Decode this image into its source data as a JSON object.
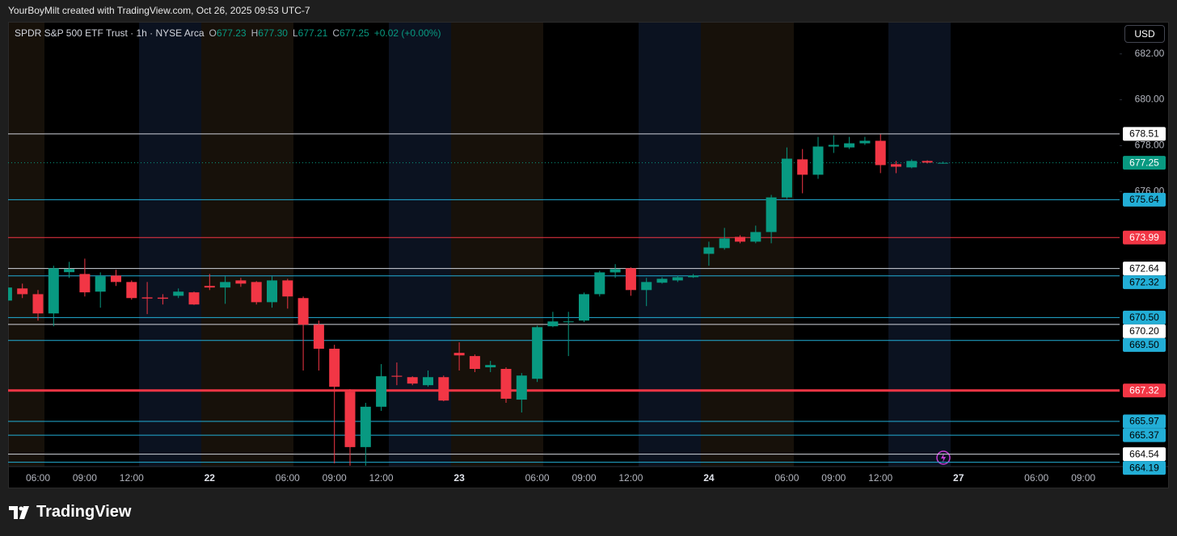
{
  "caption": "YourBoyMilt created with TradingView.com, Oct 26, 2025 09:53 UTC-7",
  "brand": "TradingView",
  "chart_data": {
    "type": "candlestick",
    "title": "SPDR S&P 500 ETF Trust · 1h · NYSE Arca",
    "legend": {
      "items": [
        {
          "key": "O",
          "value": "677.23"
        },
        {
          "key": "H",
          "value": "677.30"
        },
        {
          "key": "L",
          "value": "677.21"
        },
        {
          "key": "C",
          "value": "677.25"
        }
      ],
      "change": "+0.02 (+0.00%)"
    },
    "currency": "USD",
    "up_color": "#089981",
    "down_color": "#f23645",
    "categories": [
      null,
      null,
      "06:00",
      null,
      null,
      "09:00",
      null,
      null,
      "12:00",
      null,
      null,
      null,
      null,
      "22",
      null,
      null,
      null,
      null,
      "06:00",
      null,
      null,
      "09:00",
      null,
      null,
      "12:00",
      null,
      null,
      null,
      null,
      "23",
      null,
      null,
      null,
      null,
      "06:00",
      null,
      null,
      "09:00",
      null,
      null,
      "12:00",
      null,
      null,
      null,
      null,
      "24",
      null,
      null,
      null,
      null,
      "06:00",
      null,
      null,
      "09:00",
      null,
      null,
      "12:00",
      null,
      null,
      null,
      null,
      "27",
      null,
      null,
      null,
      null,
      "06:00",
      null,
      null,
      "09:00",
      null,
      null
    ],
    "open": [
      671.24,
      671.77,
      671.52,
      670.68,
      672.48,
      672.4,
      671.63,
      672.33,
      672.05,
      671.38,
      671.37,
      671.45,
      671.6,
      671.88,
      671.81,
      672.12,
      672.05,
      671.17,
      672.12,
      671.35,
      670.19,
      669.14,
      667.27,
      664.85,
      666.61,
      667.96,
      667.9,
      667.55,
      667.9,
      668.96,
      668.82,
      668.33,
      668.26,
      666.92,
      667.83,
      670.12,
      670.3,
      670.37,
      671.52,
      672.47,
      672.65,
      671.7,
      672.02,
      672.12,
      672.26,
      673.28,
      673.53,
      674.02,
      673.81,
      674.23,
      675.74,
      677.4,
      676.73,
      677.96,
      677.92,
      678.1,
      678.21,
      677.19,
      677.05,
      677.33,
      677.23,
      null,
      null,
      null,
      null,
      null,
      null,
      null,
      null,
      null,
      null,
      null
    ],
    "high": [
      672.0,
      671.98,
      671.7,
      672.76,
      672.93,
      673.07,
      672.47,
      672.58,
      672.12,
      672.05,
      671.52,
      671.77,
      671.63,
      672.4,
      672.3,
      672.23,
      672.09,
      672.3,
      672.19,
      671.42,
      670.37,
      669.31,
      667.38,
      666.78,
      668.47,
      668.54,
      667.94,
      668.19,
      667.97,
      669.42,
      668.89,
      668.61,
      668.33,
      668.08,
      670.15,
      670.75,
      670.75,
      671.59,
      672.54,
      672.83,
      672.69,
      672.23,
      672.26,
      672.33,
      672.4,
      673.81,
      674.41,
      674.09,
      674.51,
      675.85,
      677.92,
      677.85,
      678.38,
      678.45,
      678.38,
      678.38,
      678.49,
      677.33,
      677.4,
      677.36,
      677.3,
      null,
      null,
      null,
      null,
      null,
      null,
      null,
      null,
      null,
      null,
      null
    ],
    "low": [
      671.0,
      671.35,
      670.37,
      670.12,
      672.23,
      671.42,
      670.93,
      671.88,
      671.28,
      670.65,
      671.07,
      671.35,
      671.05,
      671.7,
      671.1,
      671.84,
      671.07,
      670.93,
      670.89,
      668.19,
      668.19,
      664.14,
      664.04,
      664.04,
      666.43,
      667.55,
      667.55,
      667.48,
      666.85,
      668.19,
      668.12,
      668.12,
      666.78,
      666.36,
      667.69,
      670.08,
      668.82,
      670.3,
      671.42,
      672.23,
      671.45,
      671.0,
      671.98,
      672.05,
      672.23,
      672.76,
      673.46,
      673.74,
      673.74,
      673.74,
      675.67,
      675.92,
      676.55,
      677.68,
      677.85,
      678.03,
      676.8,
      676.8,
      677.01,
      677.22,
      677.21,
      null,
      null,
      null,
      null,
      null,
      null,
      null,
      null,
      null,
      null,
      null
    ],
    "close": [
      671.81,
      671.52,
      670.68,
      672.65,
      672.62,
      671.6,
      672.3,
      672.05,
      671.35,
      671.33,
      671.32,
      671.63,
      671.07,
      671.81,
      672.05,
      671.98,
      671.17,
      672.12,
      671.42,
      670.19,
      669.14,
      667.48,
      664.85,
      666.61,
      667.94,
      667.92,
      667.62,
      667.9,
      666.88,
      668.85,
      668.26,
      668.43,
      666.96,
      667.97,
      670.08,
      670.33,
      670.33,
      671.52,
      672.47,
      672.61,
      671.7,
      672.05,
      672.19,
      672.26,
      672.33,
      673.56,
      673.95,
      673.81,
      674.23,
      675.74,
      677.43,
      676.73,
      677.96,
      678.03,
      678.1,
      678.21,
      677.15,
      677.08,
      677.33,
      677.26,
      677.25,
      null,
      null,
      null,
      null,
      null,
      null,
      null,
      null,
      null,
      null,
      null
    ],
    "ylim": [
      664.0,
      683.4
    ],
    "yticks": [
      {
        "value": 682,
        "label": "682.00"
      },
      {
        "value": 680,
        "label": "680.00"
      },
      {
        "value": 678,
        "label": "678.00"
      },
      {
        "value": 676,
        "label": "676.00"
      }
    ],
    "levels": [
      {
        "value": 678.51,
        "label": "678.51",
        "color": "#d1d4dc",
        "style": "solid"
      },
      {
        "value": 677.25,
        "label": "677.25",
        "color": "#089981",
        "style": "dotted"
      },
      {
        "value": 675.64,
        "label": "675.64",
        "color": "#22aed6",
        "style": "solid"
      },
      {
        "value": 673.99,
        "label": "673.99",
        "color": "#f23645",
        "style": "solid"
      },
      {
        "value": 672.64,
        "label": "672.64",
        "color": "#d1d4dc",
        "style": "solid"
      },
      {
        "value": 672.32,
        "label": "672.32",
        "color": "#22aed6",
        "style": "solid"
      },
      {
        "value": 670.5,
        "label": "670.50",
        "color": "#22aed6",
        "style": "solid"
      },
      {
        "value": 670.2,
        "label": "670.20",
        "color": "#d1d4dc",
        "style": "solid"
      },
      {
        "value": 669.5,
        "label": "669.50",
        "color": "#22aed6",
        "style": "solid"
      },
      {
        "value": 667.32,
        "label": "667.32",
        "color": "#f23645",
        "style": "thick"
      },
      {
        "value": 665.97,
        "label": "665.97",
        "color": "#22aed6",
        "style": "solid"
      },
      {
        "value": 665.37,
        "label": "665.37",
        "color": "#22aed6",
        "style": "solid"
      },
      {
        "value": 664.54,
        "label": "664.54",
        "color": "#d1d4dc",
        "style": "solid"
      },
      {
        "value": 664.19,
        "label": "664.19",
        "color": "#22aed6",
        "style": "solid"
      }
    ]
  }
}
